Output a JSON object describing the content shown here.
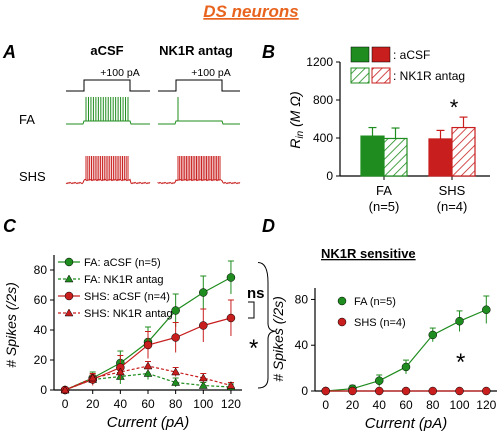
{
  "figure_title": "DS neurons",
  "colors": {
    "title": "#e8641e",
    "fa": "#1e8c1e",
    "shs": "#c81e1e",
    "black": "#000000"
  },
  "panel_a": {
    "label": "A",
    "col_labels": [
      "aCSF",
      "NK1R antag"
    ],
    "step_label": "+100 pA",
    "row_labels": [
      "FA",
      "SHS"
    ]
  },
  "panel_b": {
    "label": "B",
    "legend_acsf": ": aCSF",
    "legend_antag": ": NK1R antag"
  },
  "panel_c": {
    "label": "C",
    "legend": [
      "FA: aCSF (n=5)",
      "FA: NK1R antag",
      "SHS: aCSF (n=4)",
      "SHS: NK1R antag"
    ],
    "ns_label": "ns",
    "star": "*"
  },
  "panel_d": {
    "label": "D",
    "subtitle": "NK1R sensitive",
    "legend": [
      "FA (n=5)",
      "SHS (n=4)"
    ],
    "star": "*"
  },
  "chart_data": [
    {
      "id": "B",
      "type": "bar",
      "ylabel": "R_in (M Ω)",
      "ylim": [
        0,
        1200
      ],
      "yticks": [
        0,
        400,
        800,
        1200
      ],
      "categories": [
        "FA",
        "SHS"
      ],
      "category_sublabels": [
        "(n=5)",
        "(n=4)"
      ],
      "series": [
        {
          "values": [
            420,
            390
          ],
          "errors": [
            90,
            90
          ]
        },
        {
          "values": [
            395,
            510
          ],
          "errors": [
            110,
            110
          ]
        }
      ],
      "annotations": [
        {
          "category": "SHS",
          "text": "*"
        }
      ]
    },
    {
      "id": "C",
      "type": "line",
      "xlabel": "Current (pA)",
      "ylabel": "# Spikes (/2s)",
      "xticks": [
        0,
        20,
        40,
        60,
        80,
        100,
        120
      ],
      "yticks": [
        0,
        20,
        40,
        60,
        80
      ],
      "xlim": [
        -8,
        128
      ],
      "ylim": [
        0,
        90
      ],
      "x": [
        0,
        20,
        40,
        60,
        80,
        100,
        120
      ],
      "series": [
        {
          "name": "FA: aCSF (n=5)",
          "values": [
            0,
            8,
            18,
            32,
            53,
            65,
            75
          ],
          "errors": [
            1,
            4,
            8,
            10,
            11,
            11,
            11
          ]
        },
        {
          "name": "FA: NK1R antag",
          "values": [
            0,
            7,
            9,
            11,
            5,
            3,
            2
          ],
          "errors": [
            0.5,
            3,
            5,
            4,
            3,
            2,
            2
          ]
        },
        {
          "name": "SHS: aCSF (n=4)",
          "values": [
            0,
            7,
            15,
            30,
            35,
            43,
            48
          ],
          "errors": [
            1,
            4,
            8,
            9,
            10,
            11,
            12
          ]
        },
        {
          "name": "SHS: NK1R antag",
          "values": [
            0,
            8,
            12,
            16,
            12,
            8,
            3
          ],
          "errors": [
            0.5,
            2,
            3,
            3,
            3,
            3,
            2
          ]
        }
      ]
    },
    {
      "id": "D",
      "type": "line",
      "xlabel": "Current (pA)",
      "ylabel": "# Spikes (/2s)",
      "xticks": [
        0,
        20,
        40,
        60,
        80,
        100,
        120
      ],
      "yticks": [
        0,
        40,
        80
      ],
      "xlim": [
        -8,
        128
      ],
      "ylim": [
        0,
        90
      ],
      "x": [
        0,
        20,
        40,
        60,
        80,
        100,
        120
      ],
      "series": [
        {
          "name": "FA (n=5)",
          "values": [
            0,
            2,
            9,
            21,
            49,
            61,
            71
          ],
          "errors": [
            1,
            3,
            5,
            6,
            6,
            9,
            12
          ]
        },
        {
          "name": "SHS (n=4)",
          "values": [
            0,
            0,
            0,
            0,
            0,
            0,
            0
          ],
          "errors": [
            0,
            0,
            0,
            0,
            0,
            0,
            0
          ]
        }
      ]
    }
  ]
}
